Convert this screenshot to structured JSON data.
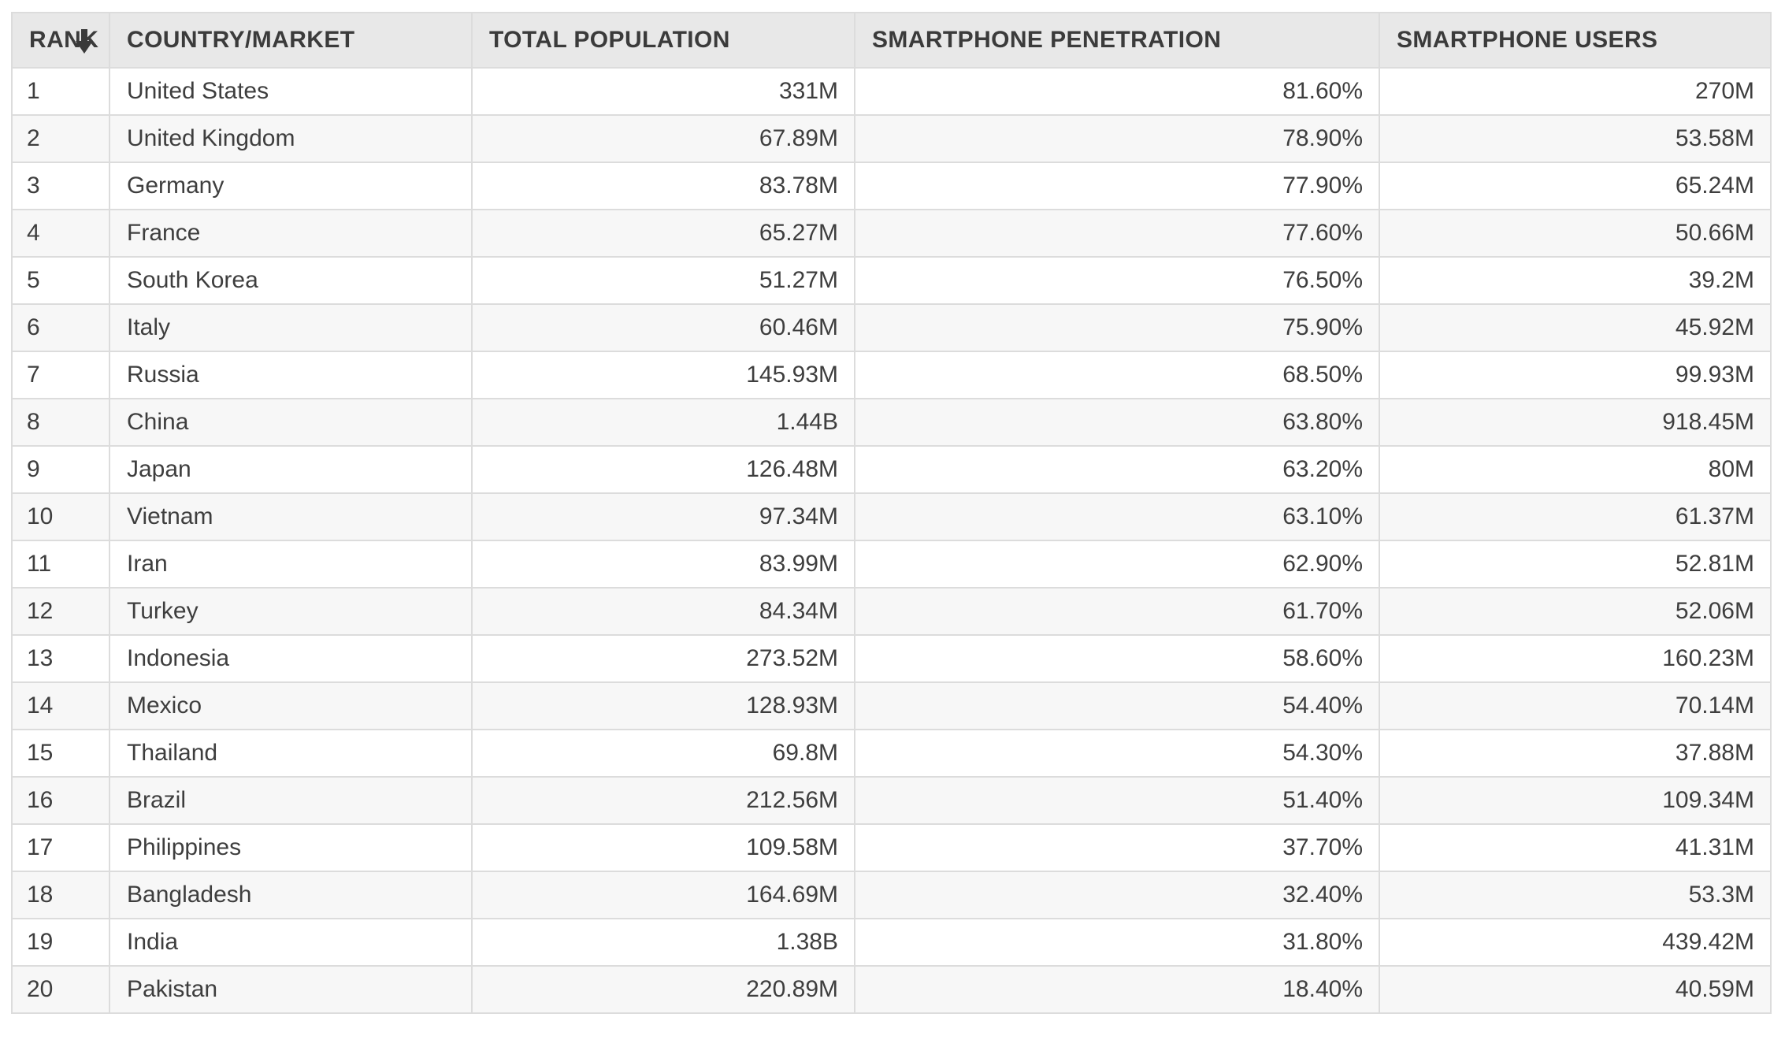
{
  "colors": {
    "header_bg": "#e8e8e8",
    "row_bg": "#ffffff",
    "row_alt_bg": "#f7f7f7",
    "border": "#dcdcdc",
    "header_text": "#3b3b3b",
    "body_text": "#3e3e3e",
    "sort_icon": "#3a3a3a"
  },
  "chart_data": {
    "type": "table",
    "columns": [
      {
        "key": "rank",
        "label": "RANK",
        "align": "left",
        "sorted": true,
        "sort_direction": "descending",
        "sort_icon": "arrow-down-icon"
      },
      {
        "key": "country",
        "label": "COUNTRY/MARKET",
        "align": "left"
      },
      {
        "key": "population",
        "label": "TOTAL POPULATION",
        "align": "right"
      },
      {
        "key": "penetration",
        "label": "SMARTPHONE PENETRATION",
        "align": "right"
      },
      {
        "key": "users",
        "label": "SMARTPHONE USERS",
        "align": "right"
      }
    ],
    "rows": [
      {
        "rank": "1",
        "country": "United States",
        "population": "331M",
        "penetration": "81.60%",
        "users": "270M"
      },
      {
        "rank": "2",
        "country": "United Kingdom",
        "population": "67.89M",
        "penetration": "78.90%",
        "users": "53.58M"
      },
      {
        "rank": "3",
        "country": "Germany",
        "population": "83.78M",
        "penetration": "77.90%",
        "users": "65.24M"
      },
      {
        "rank": "4",
        "country": "France",
        "population": "65.27M",
        "penetration": "77.60%",
        "users": "50.66M"
      },
      {
        "rank": "5",
        "country": "South Korea",
        "population": "51.27M",
        "penetration": "76.50%",
        "users": "39.2M"
      },
      {
        "rank": "6",
        "country": "Italy",
        "population": "60.46M",
        "penetration": "75.90%",
        "users": "45.92M"
      },
      {
        "rank": "7",
        "country": "Russia",
        "population": "145.93M",
        "penetration": "68.50%",
        "users": "99.93M"
      },
      {
        "rank": "8",
        "country": "China",
        "population": "1.44B",
        "penetration": "63.80%",
        "users": "918.45M"
      },
      {
        "rank": "9",
        "country": "Japan",
        "population": "126.48M",
        "penetration": "63.20%",
        "users": "80M"
      },
      {
        "rank": "10",
        "country": "Vietnam",
        "population": "97.34M",
        "penetration": "63.10%",
        "users": "61.37M"
      },
      {
        "rank": "11",
        "country": "Iran",
        "population": "83.99M",
        "penetration": "62.90%",
        "users": "52.81M"
      },
      {
        "rank": "12",
        "country": "Turkey",
        "population": "84.34M",
        "penetration": "61.70%",
        "users": "52.06M"
      },
      {
        "rank": "13",
        "country": "Indonesia",
        "population": "273.52M",
        "penetration": "58.60%",
        "users": "160.23M"
      },
      {
        "rank": "14",
        "country": "Mexico",
        "population": "128.93M",
        "penetration": "54.40%",
        "users": "70.14M"
      },
      {
        "rank": "15",
        "country": "Thailand",
        "population": "69.8M",
        "penetration": "54.30%",
        "users": "37.88M"
      },
      {
        "rank": "16",
        "country": "Brazil",
        "population": "212.56M",
        "penetration": "51.40%",
        "users": "109.34M"
      },
      {
        "rank": "17",
        "country": "Philippines",
        "population": "109.58M",
        "penetration": "37.70%",
        "users": "41.31M"
      },
      {
        "rank": "18",
        "country": "Bangladesh",
        "population": "164.69M",
        "penetration": "32.40%",
        "users": "53.3M"
      },
      {
        "rank": "19",
        "country": "India",
        "population": "1.38B",
        "penetration": "31.80%",
        "users": "439.42M"
      },
      {
        "rank": "20",
        "country": "Pakistan",
        "population": "220.89M",
        "penetration": "18.40%",
        "users": "40.59M"
      }
    ]
  }
}
